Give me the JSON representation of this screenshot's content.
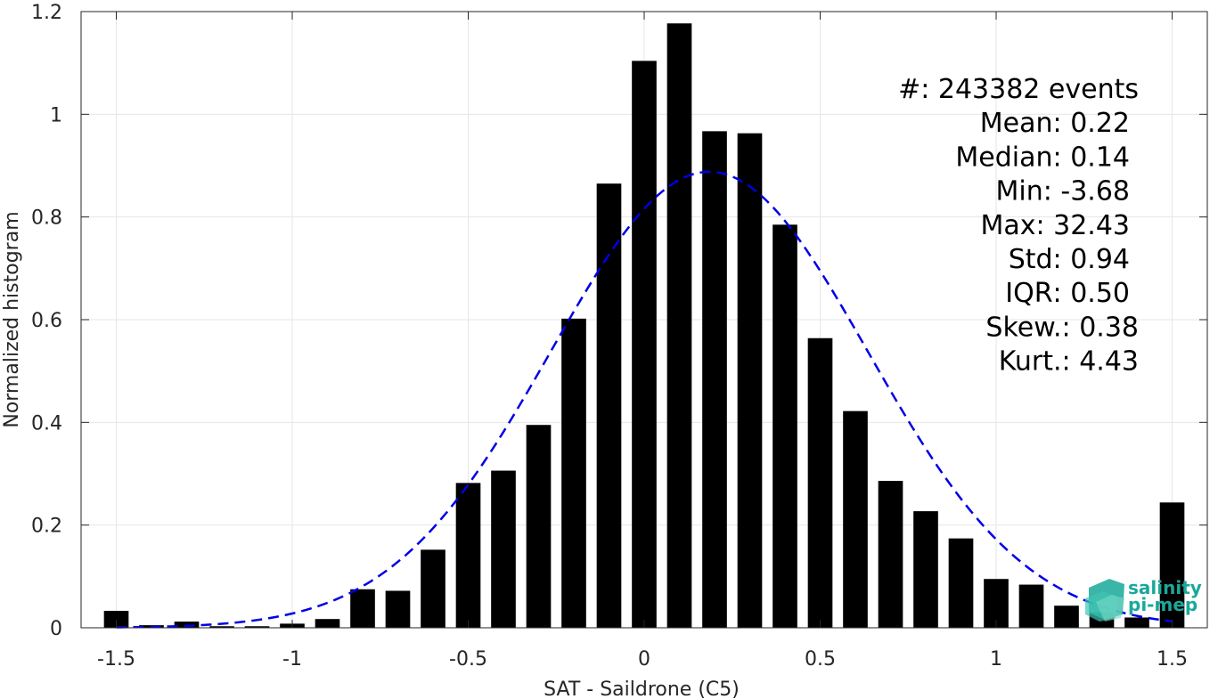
{
  "chart_data": {
    "type": "bar",
    "title": "",
    "xlabel": "SAT - Saildrone (C5)",
    "ylabel": "Normalized histogram",
    "xlim": [
      -1.6,
      1.6
    ],
    "ylim": [
      0,
      1.2
    ],
    "grid": true,
    "x_ticks": [
      -1.5,
      -1,
      -0.5,
      0,
      0.5,
      1,
      1.5
    ],
    "x_tick_labels": [
      "-1.5",
      "-1",
      "-0.5",
      "0",
      "0.5",
      "1",
      "1.5"
    ],
    "y_ticks": [
      0,
      0.2,
      0.4,
      0.6,
      0.8,
      1,
      1.2
    ],
    "y_tick_labels": [
      "0",
      "0.2",
      "0.4",
      "0.6",
      "0.8",
      "1",
      "1.2"
    ],
    "bar_width": 0.07,
    "x": [
      -1.5,
      -1.4,
      -1.3,
      -1.2,
      -1.1,
      -1.0,
      -0.9,
      -0.8,
      -0.7,
      -0.6,
      -0.5,
      -0.4,
      -0.3,
      -0.2,
      -0.1,
      0.0,
      0.1,
      0.2,
      0.3,
      0.4,
      0.5,
      0.6,
      0.7,
      0.8,
      0.9,
      1.0,
      1.1,
      1.2,
      1.3,
      1.4,
      1.5
    ],
    "values": [
      0.033,
      0.005,
      0.012,
      0.003,
      0.003,
      0.008,
      0.017,
      0.075,
      0.072,
      0.152,
      0.282,
      0.306,
      0.395,
      0.602,
      0.865,
      1.104,
      1.177,
      0.967,
      0.963,
      0.785,
      0.564,
      0.422,
      0.286,
      0.227,
      0.174,
      0.095,
      0.084,
      0.043,
      0.03,
      0.02,
      0.244
    ],
    "bar_color": "#000000",
    "fit_curve": {
      "style": "dashed",
      "color": "#0000e6",
      "mean": 0.185,
      "std": 0.45,
      "peak": 0.888,
      "x_range": [
        -1.5,
        1.5
      ]
    },
    "stats": [
      {
        "label": "#  ",
        "value": ": 243382 events"
      },
      {
        "label": "Mean ",
        "value": ": 0.22"
      },
      {
        "label": "Median ",
        "value": ": 0.14"
      },
      {
        "label": "Min ",
        "value": ": -3.68"
      },
      {
        "label": "Max ",
        "value": ": 32.43"
      },
      {
        "label": "Std ",
        "value": ": 0.94"
      },
      {
        "label": "IQR ",
        "value": ": 0.50"
      },
      {
        "label": "Skew. ",
        "value": ": 0.38"
      },
      {
        "label": "Kurt. ",
        "value": ": 4.43"
      }
    ]
  },
  "logo": {
    "line1": "salinity",
    "line2": "pi-mep",
    "color": "#1aa89a"
  }
}
